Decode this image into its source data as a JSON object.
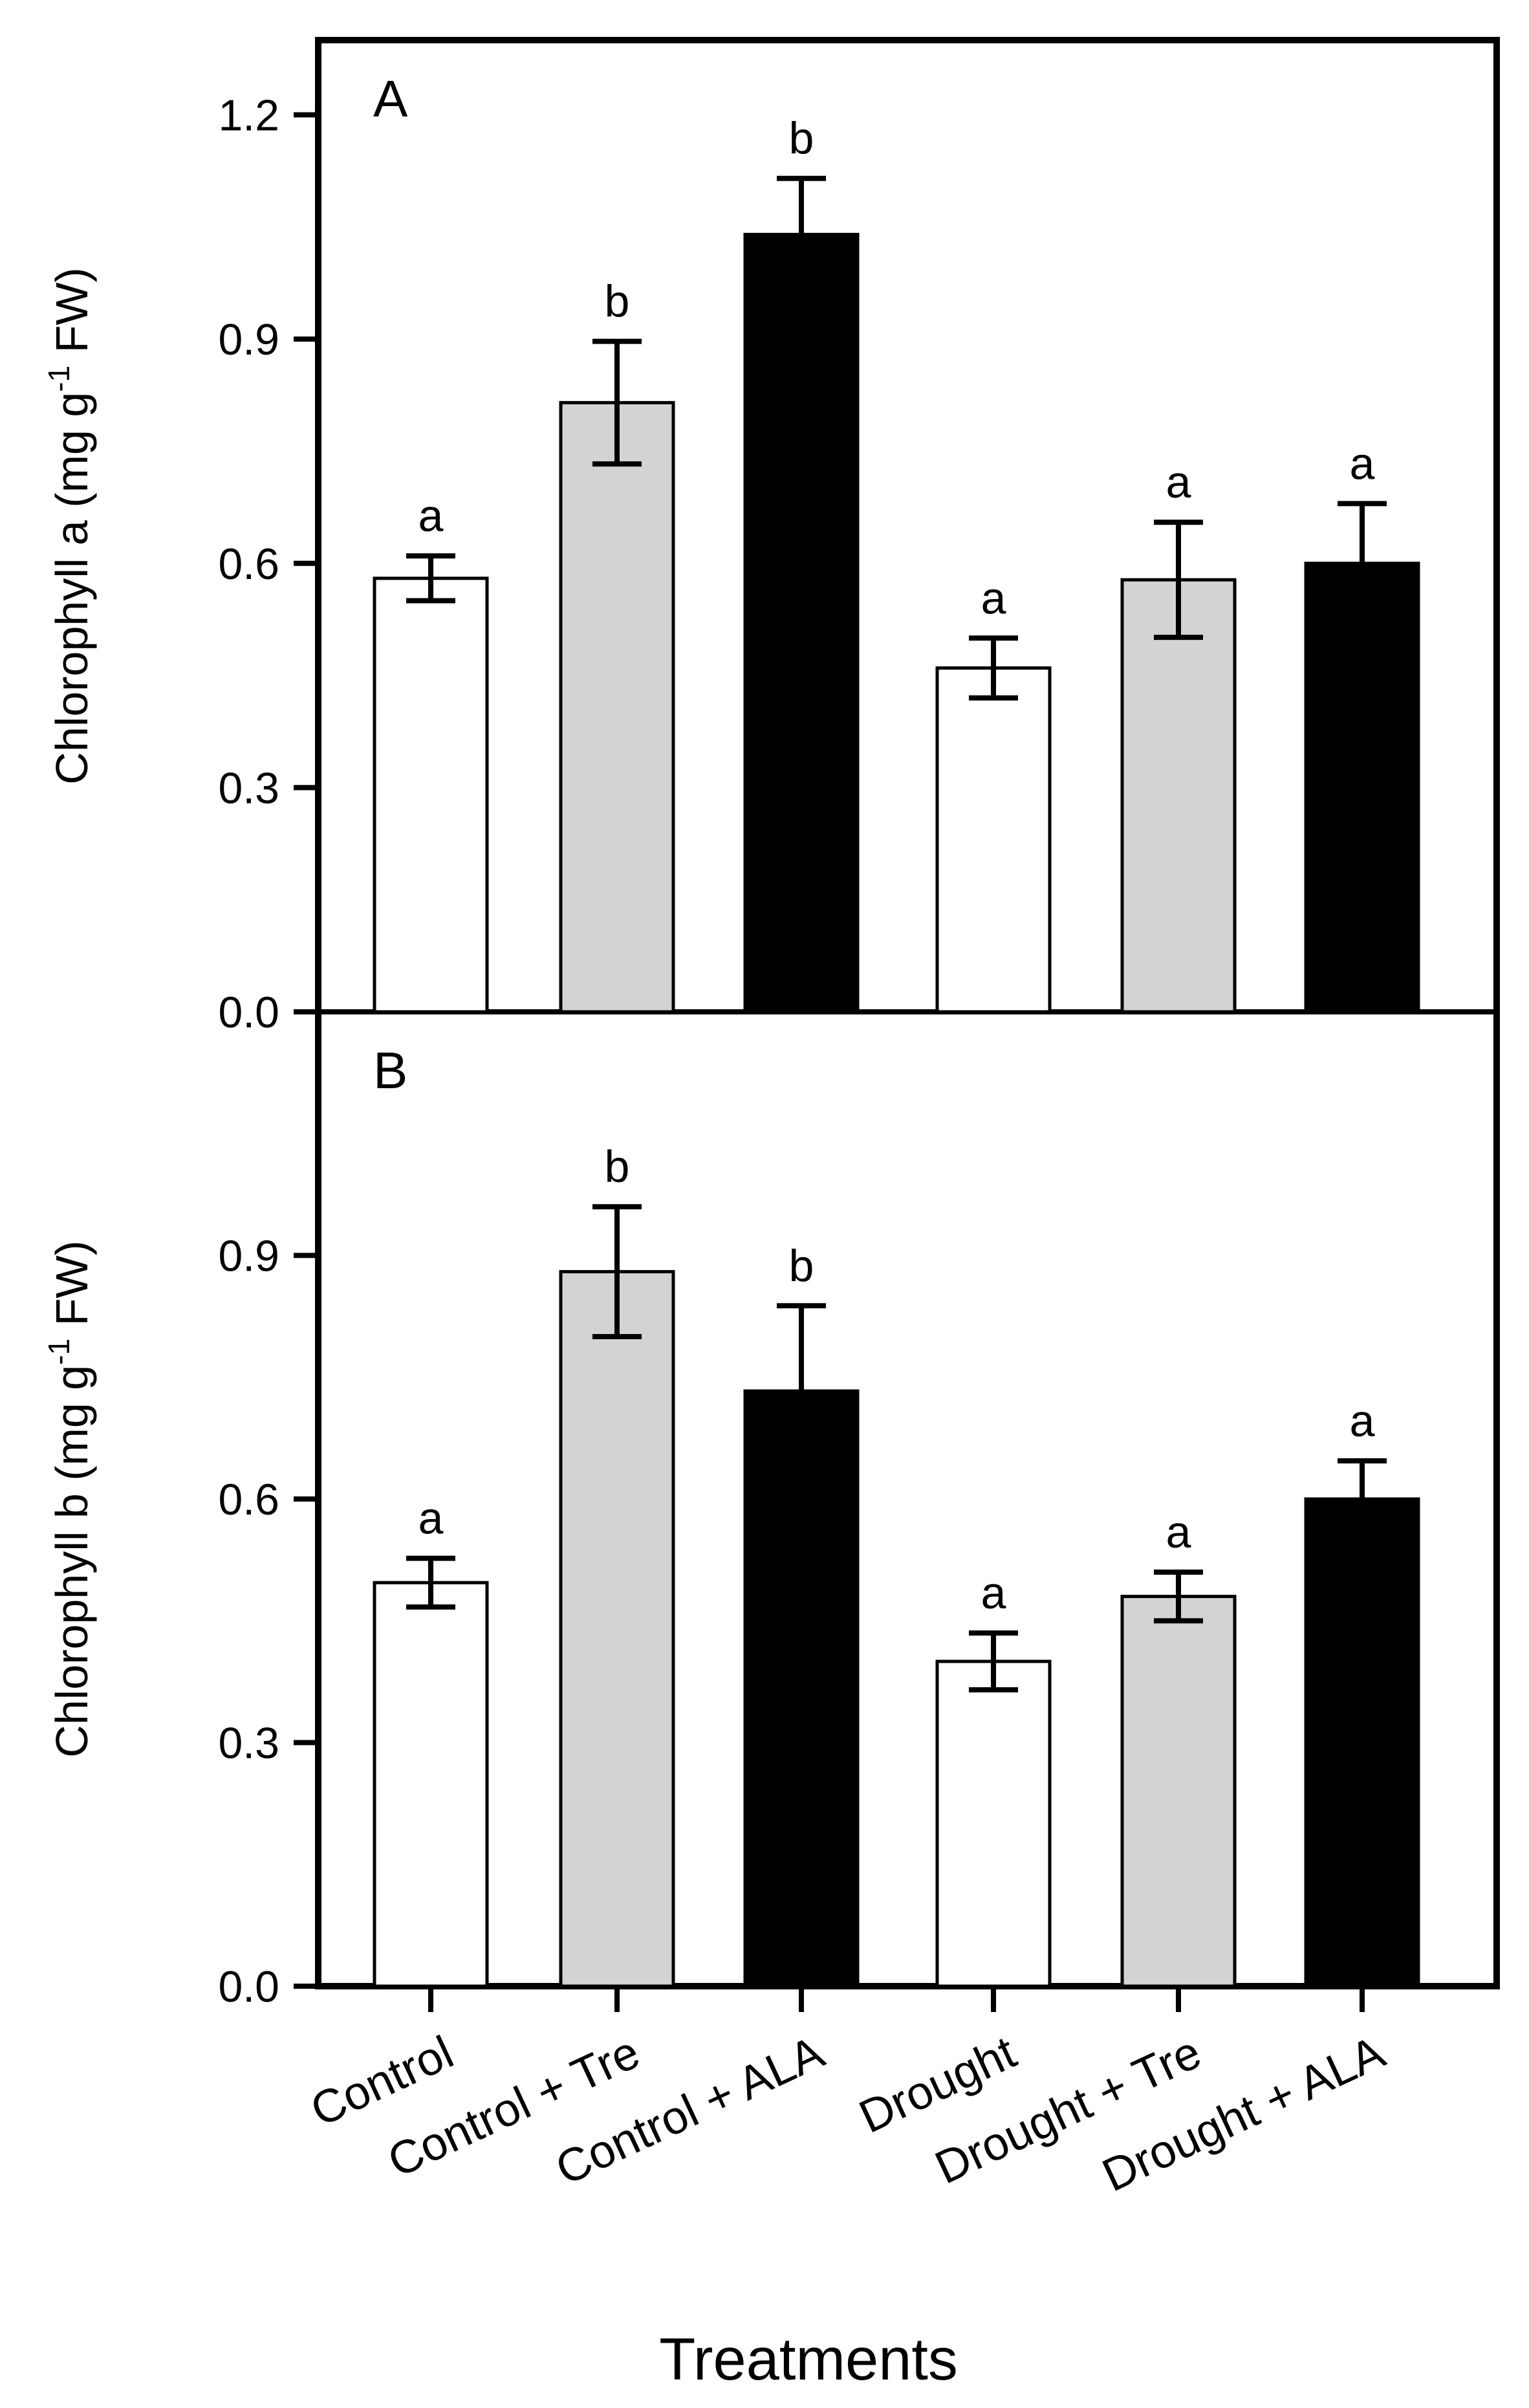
{
  "chart_data": {
    "type": "bar",
    "xlabel": "Treatments",
    "categories": [
      "Control",
      "Control + Tre",
      "Control + ALA",
      "Drought",
      "Drought + Tre",
      "Drought + ALA"
    ],
    "bar_colors": [
      "#ffffff",
      "#d3d3d3",
      "#000000",
      "#ffffff",
      "#d3d3d3",
      "#000000"
    ],
    "panels": [
      {
        "label": "A",
        "ylabel_main": "Chlorophyll a (mg g",
        "ylabel_sup": "-1",
        "ylabel_tail": " FW)",
        "ylim": [
          0,
          1.3
        ],
        "yticks": [
          0.0,
          0.3,
          0.6,
          0.9,
          1.2
        ],
        "ytick_labels": [
          "0.0",
          "0.3",
          "0.6",
          "0.9",
          "1.2"
        ],
        "values": [
          0.58,
          0.815,
          1.04,
          0.46,
          0.578,
          0.6
        ],
        "errors": [
          0.03,
          0.082,
          0.075,
          0.04,
          0.077,
          0.08
        ],
        "significance": [
          "a",
          "b",
          "b",
          "a",
          "a",
          "a"
        ]
      },
      {
        "label": "B",
        "ylabel_main": "Chlorophyll b (mg g",
        "ylabel_sup": "-1",
        "ylabel_tail": " FW)",
        "ylim": [
          0,
          1.2
        ],
        "yticks": [
          0.0,
          0.3,
          0.6,
          0.9
        ],
        "ytick_labels": [
          "0.0",
          "0.3",
          "0.6",
          "0.9"
        ],
        "values": [
          0.497,
          0.88,
          0.733,
          0.4,
          0.48,
          0.6
        ],
        "errors": [
          0.03,
          0.08,
          0.105,
          0.035,
          0.03,
          0.047
        ],
        "significance": [
          "a",
          "b",
          "b",
          "a",
          "a",
          "a"
        ]
      }
    ]
  }
}
